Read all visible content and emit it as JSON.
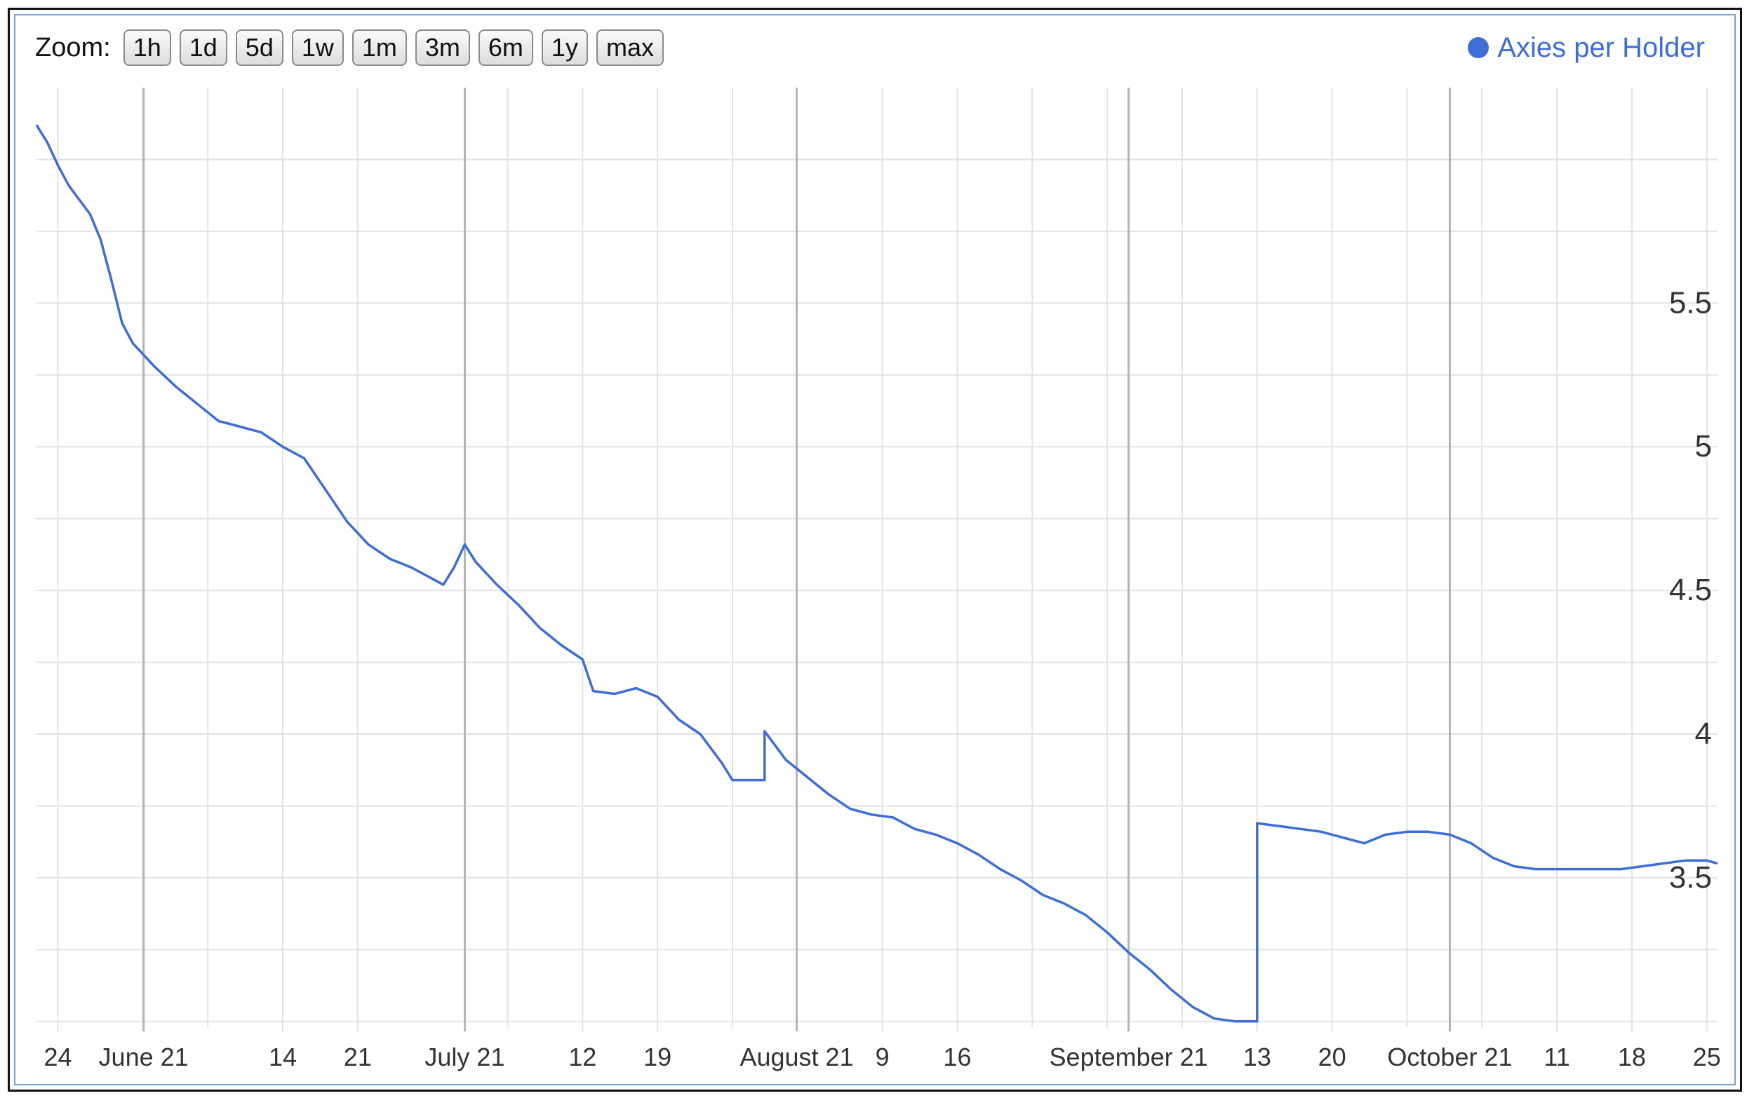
{
  "zoom": {
    "label": "Zoom:",
    "buttons": [
      "1h",
      "1d",
      "5d",
      "1w",
      "1m",
      "3m",
      "6m",
      "1y",
      "max"
    ]
  },
  "colors": {
    "series": "#3c6ed6",
    "grid_minor": "#e2e2e2",
    "grid_major": "#b4b4b4",
    "border": "#7a9fd6"
  },
  "chart_data": {
    "type": "line",
    "title": "",
    "xlabel": "",
    "ylabel": "",
    "legend": "top-right",
    "grid": true,
    "ylim": [
      2.98,
      6.25
    ],
    "xlim": [
      "2021-05-22",
      "2021-10-26"
    ],
    "y_ticks": [
      {
        "value": 5.5,
        "label": "5.5"
      },
      {
        "value": 5.0,
        "label": "5"
      },
      {
        "value": 4.5,
        "label": "4.5"
      },
      {
        "value": 4.0,
        "label": "4"
      },
      {
        "value": 3.5,
        "label": "3.5"
      }
    ],
    "x_ticks": [
      {
        "x": "2021-05-24",
        "label": "24"
      },
      {
        "x": "2021-06-01",
        "label": "June 21"
      },
      {
        "x": "2021-06-14",
        "label": "14"
      },
      {
        "x": "2021-06-21",
        "label": "21"
      },
      {
        "x": "2021-07-01",
        "label": "July 21"
      },
      {
        "x": "2021-07-12",
        "label": "12"
      },
      {
        "x": "2021-07-19",
        "label": "19"
      },
      {
        "x": "2021-08-01",
        "label": "August 21"
      },
      {
        "x": "2021-08-09",
        "label": "9"
      },
      {
        "x": "2021-08-16",
        "label": "16"
      },
      {
        "x": "2021-09-01",
        "label": "September 21"
      },
      {
        "x": "2021-09-13",
        "label": "13"
      },
      {
        "x": "2021-09-20",
        "label": "20"
      },
      {
        "x": "2021-10-01",
        "label": "October 21"
      },
      {
        "x": "2021-10-11",
        "label": "11"
      },
      {
        "x": "2021-10-18",
        "label": "18"
      },
      {
        "x": "2021-10-25",
        "label": "25"
      }
    ],
    "series": [
      {
        "name": "Axies per Holder",
        "points": [
          [
            "2021-05-22",
            6.12
          ],
          [
            "2021-05-23",
            6.06
          ],
          [
            "2021-05-24",
            5.98
          ],
          [
            "2021-05-25",
            5.91
          ],
          [
            "2021-05-26",
            5.86
          ],
          [
            "2021-05-27",
            5.81
          ],
          [
            "2021-05-28",
            5.72
          ],
          [
            "2021-05-29",
            5.58
          ],
          [
            "2021-05-30",
            5.43
          ],
          [
            "2021-05-31",
            5.36
          ],
          [
            "2021-06-02",
            5.28
          ],
          [
            "2021-06-04",
            5.21
          ],
          [
            "2021-06-06",
            5.15
          ],
          [
            "2021-06-08",
            5.09
          ],
          [
            "2021-06-10",
            5.07
          ],
          [
            "2021-06-12",
            5.05
          ],
          [
            "2021-06-14",
            5.0
          ],
          [
            "2021-06-16",
            4.96
          ],
          [
            "2021-06-18",
            4.85
          ],
          [
            "2021-06-20",
            4.74
          ],
          [
            "2021-06-22",
            4.66
          ],
          [
            "2021-06-24",
            4.61
          ],
          [
            "2021-06-26",
            4.58
          ],
          [
            "2021-06-28",
            4.54
          ],
          [
            "2021-06-29",
            4.52
          ],
          [
            "2021-06-30",
            4.58
          ],
          [
            "2021-07-01",
            4.66
          ],
          [
            "2021-07-02",
            4.6
          ],
          [
            "2021-07-04",
            4.52
          ],
          [
            "2021-07-06",
            4.45
          ],
          [
            "2021-07-08",
            4.37
          ],
          [
            "2021-07-10",
            4.31
          ],
          [
            "2021-07-12",
            4.26
          ],
          [
            "2021-07-13",
            4.15
          ],
          [
            "2021-07-15",
            4.14
          ],
          [
            "2021-07-17",
            4.16
          ],
          [
            "2021-07-19",
            4.13
          ],
          [
            "2021-07-21",
            4.05
          ],
          [
            "2021-07-23",
            4.0
          ],
          [
            "2021-07-25",
            3.9
          ],
          [
            "2021-07-26",
            3.84
          ],
          [
            "2021-07-29",
            3.84
          ],
          [
            "2021-07-29",
            4.01
          ],
          [
            "2021-07-31",
            3.91
          ],
          [
            "2021-08-02",
            3.85
          ],
          [
            "2021-08-04",
            3.79
          ],
          [
            "2021-08-06",
            3.74
          ],
          [
            "2021-08-08",
            3.72
          ],
          [
            "2021-08-10",
            3.71
          ],
          [
            "2021-08-12",
            3.67
          ],
          [
            "2021-08-14",
            3.65
          ],
          [
            "2021-08-16",
            3.62
          ],
          [
            "2021-08-18",
            3.58
          ],
          [
            "2021-08-20",
            3.53
          ],
          [
            "2021-08-22",
            3.49
          ],
          [
            "2021-08-24",
            3.44
          ],
          [
            "2021-08-26",
            3.41
          ],
          [
            "2021-08-28",
            3.37
          ],
          [
            "2021-08-30",
            3.31
          ],
          [
            "2021-09-01",
            3.24
          ],
          [
            "2021-09-03",
            3.18
          ],
          [
            "2021-09-05",
            3.11
          ],
          [
            "2021-09-07",
            3.05
          ],
          [
            "2021-09-09",
            3.01
          ],
          [
            "2021-09-11",
            3.0
          ],
          [
            "2021-09-13",
            3.0
          ],
          [
            "2021-09-13",
            3.69
          ],
          [
            "2021-09-15",
            3.68
          ],
          [
            "2021-09-17",
            3.67
          ],
          [
            "2021-09-19",
            3.66
          ],
          [
            "2021-09-21",
            3.64
          ],
          [
            "2021-09-23",
            3.62
          ],
          [
            "2021-09-25",
            3.65
          ],
          [
            "2021-09-27",
            3.66
          ],
          [
            "2021-09-29",
            3.66
          ],
          [
            "2021-10-01",
            3.65
          ],
          [
            "2021-10-03",
            3.62
          ],
          [
            "2021-10-05",
            3.57
          ],
          [
            "2021-10-07",
            3.54
          ],
          [
            "2021-10-09",
            3.53
          ],
          [
            "2021-10-11",
            3.53
          ],
          [
            "2021-10-13",
            3.53
          ],
          [
            "2021-10-15",
            3.53
          ],
          [
            "2021-10-17",
            3.53
          ],
          [
            "2021-10-19",
            3.54
          ],
          [
            "2021-10-21",
            3.55
          ],
          [
            "2021-10-23",
            3.56
          ],
          [
            "2021-10-25",
            3.56
          ],
          [
            "2021-10-26",
            3.55
          ]
        ]
      }
    ]
  }
}
